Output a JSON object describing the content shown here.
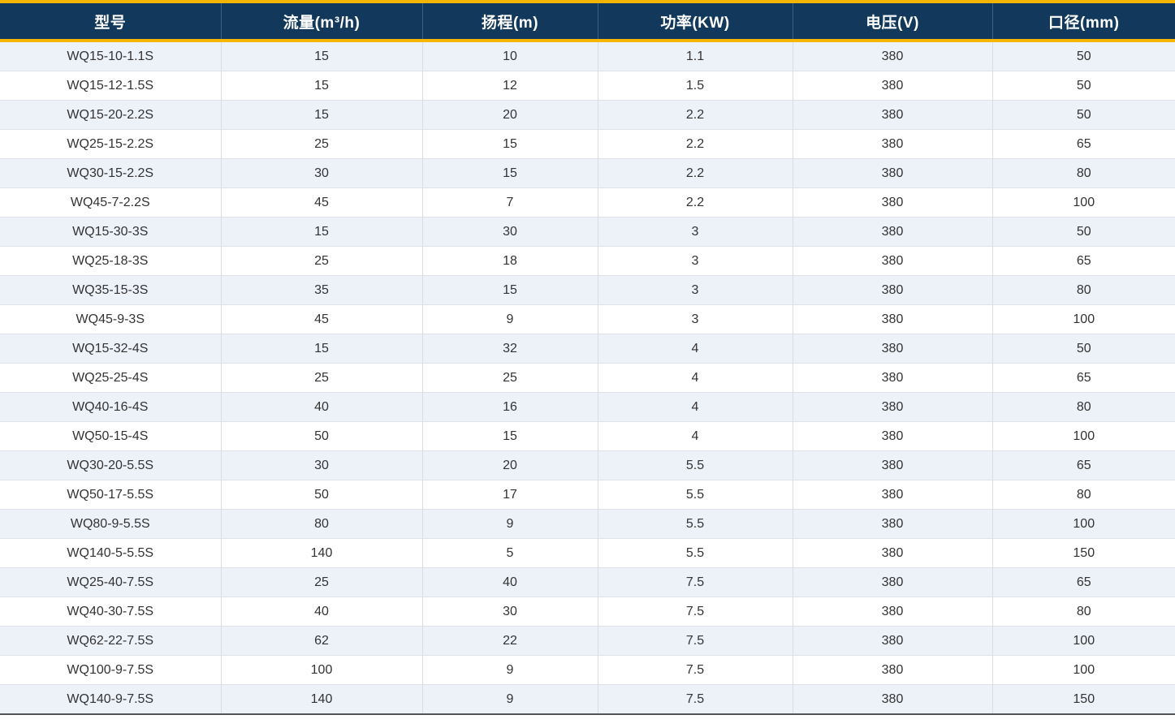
{
  "chart_data": {
    "type": "table",
    "columns": [
      "型号",
      "流量(m³/h)",
      "扬程(m)",
      "功率(KW)",
      "电压(V)",
      "口径(mm)"
    ],
    "column_keys": [
      "model",
      "flow",
      "head",
      "power",
      "voltage",
      "diameter"
    ],
    "rows": [
      [
        "WQ15-10-1.1S",
        "15",
        "10",
        "1.1",
        "380",
        "50"
      ],
      [
        "WQ15-12-1.5S",
        "15",
        "12",
        "1.5",
        "380",
        "50"
      ],
      [
        "WQ15-20-2.2S",
        "15",
        "20",
        "2.2",
        "380",
        "50"
      ],
      [
        "WQ25-15-2.2S",
        "25",
        "15",
        "2.2",
        "380",
        "65"
      ],
      [
        "WQ30-15-2.2S",
        "30",
        "15",
        "2.2",
        "380",
        "80"
      ],
      [
        "WQ45-7-2.2S",
        "45",
        "7",
        "2.2",
        "380",
        "100"
      ],
      [
        "WQ15-30-3S",
        "15",
        "30",
        "3",
        "380",
        "50"
      ],
      [
        "WQ25-18-3S",
        "25",
        "18",
        "3",
        "380",
        "65"
      ],
      [
        "WQ35-15-3S",
        "35",
        "15",
        "3",
        "380",
        "80"
      ],
      [
        "WQ45-9-3S",
        "45",
        "9",
        "3",
        "380",
        "100"
      ],
      [
        "WQ15-32-4S",
        "15",
        "32",
        "4",
        "380",
        "50"
      ],
      [
        "WQ25-25-4S",
        "25",
        "25",
        "4",
        "380",
        "65"
      ],
      [
        "WQ40-16-4S",
        "40",
        "16",
        "4",
        "380",
        "80"
      ],
      [
        "WQ50-15-4S",
        "50",
        "15",
        "4",
        "380",
        "100"
      ],
      [
        "WQ30-20-5.5S",
        "30",
        "20",
        "5.5",
        "380",
        "65"
      ],
      [
        "WQ50-17-5.5S",
        "50",
        "17",
        "5.5",
        "380",
        "80"
      ],
      [
        "WQ80-9-5.5S",
        "80",
        "9",
        "5.5",
        "380",
        "100"
      ],
      [
        "WQ140-5-5.5S",
        "140",
        "5",
        "5.5",
        "380",
        "150"
      ],
      [
        "WQ25-40-7.5S",
        "25",
        "40",
        "7.5",
        "380",
        "65"
      ],
      [
        "WQ40-30-7.5S",
        "40",
        "30",
        "7.5",
        "380",
        "80"
      ],
      [
        "WQ62-22-7.5S",
        "62",
        "22",
        "7.5",
        "380",
        "100"
      ],
      [
        "WQ100-9-7.5S",
        "100",
        "9",
        "7.5",
        "380",
        "100"
      ],
      [
        "WQ140-9-7.5S",
        "140",
        "9",
        "7.5",
        "380",
        "150"
      ]
    ]
  },
  "styles": {
    "header_bg": "#12395B",
    "header_text": "#FFFFFF",
    "accent_yellow": "#F7B503",
    "row_alt_bg": "#EDF1F8",
    "row_bg": "#FFFFFF",
    "grid_line": "#D9DEE4",
    "bottom_border": "#515356",
    "body_text": "#333333"
  }
}
